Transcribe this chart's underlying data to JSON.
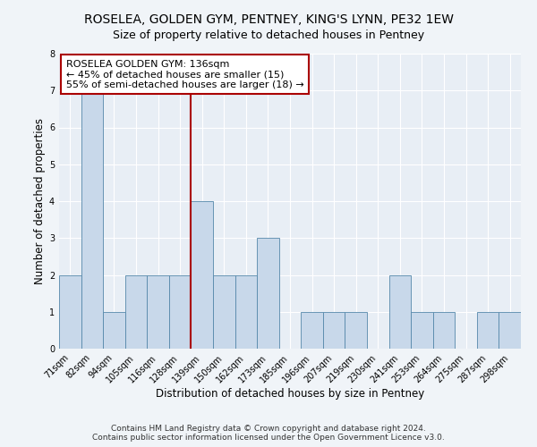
{
  "title": "ROSELEA, GOLDEN GYM, PENTNEY, KING'S LYNN, PE32 1EW",
  "subtitle": "Size of property relative to detached houses in Pentney",
  "xlabel": "Distribution of detached houses by size in Pentney",
  "ylabel": "Number of detached properties",
  "bins": [
    "71sqm",
    "82sqm",
    "94sqm",
    "105sqm",
    "116sqm",
    "128sqm",
    "139sqm",
    "150sqm",
    "162sqm",
    "173sqm",
    "185sqm",
    "196sqm",
    "207sqm",
    "219sqm",
    "230sqm",
    "241sqm",
    "253sqm",
    "264sqm",
    "275sqm",
    "287sqm",
    "298sqm"
  ],
  "counts": [
    2,
    7,
    1,
    2,
    2,
    2,
    4,
    2,
    2,
    3,
    0,
    1,
    1,
    1,
    0,
    2,
    1,
    1,
    0,
    1,
    1
  ],
  "bar_color": "#c8d8ea",
  "bar_edge_color": "#5588aa",
  "vline_x_index": 6,
  "vline_color": "#aa0000",
  "vline_label": "ROSELEA GOLDEN GYM: 136sqm",
  "annotation_smaller": "← 45% of detached houses are smaller (15)",
  "annotation_larger": "55% of semi-detached houses are larger (18) →",
  "ylim": [
    0,
    8
  ],
  "yticks": [
    0,
    1,
    2,
    3,
    4,
    5,
    6,
    7,
    8
  ],
  "background_color": "#f0f4f8",
  "plot_bg_color": "#e8eef5",
  "grid_color": "#ffffff",
  "footer_line1": "Contains HM Land Registry data © Crown copyright and database right 2024.",
  "footer_line2": "Contains public sector information licensed under the Open Government Licence v3.0.",
  "title_fontsize": 10,
  "subtitle_fontsize": 9,
  "axis_label_fontsize": 8.5,
  "tick_fontsize": 7,
  "annotation_fontsize": 8
}
